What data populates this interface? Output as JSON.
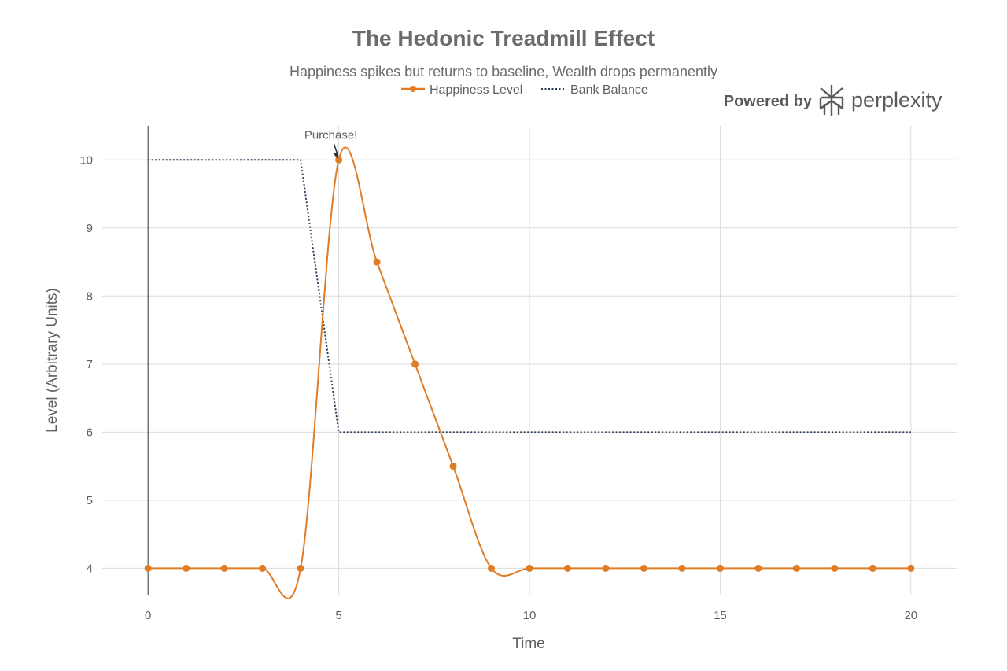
{
  "chart_data": {
    "type": "line",
    "title": "The Hedonic Treadmill Effect",
    "subtitle": "Happiness spikes but returns to baseline, Wealth drops permanently",
    "xlabel": "Time",
    "ylabel": "Level (Arbitrary Units)",
    "xlim": [
      -1.2,
      21.2
    ],
    "ylim": [
      3.6,
      10.5
    ],
    "xticks": [
      0,
      5,
      10,
      15,
      20
    ],
    "yticks": [
      4,
      5,
      6,
      7,
      8,
      9,
      10
    ],
    "grid": true,
    "legend": {
      "placement": "top-center"
    },
    "series": [
      {
        "name": "Happiness Level",
        "style": "line+markers, spline",
        "color": "#e07c24",
        "x": [
          0,
          1,
          2,
          3,
          4,
          5,
          6,
          7,
          8,
          9,
          10,
          11,
          12,
          13,
          14,
          15,
          16,
          17,
          18,
          19,
          20
        ],
        "y": [
          4,
          4,
          4,
          4,
          4,
          10,
          8.5,
          7,
          5.5,
          4,
          4,
          4,
          4,
          4,
          4,
          4,
          4,
          4,
          4,
          4,
          4
        ]
      },
      {
        "name": "Bank Balance",
        "style": "dotted line",
        "color": "#2d3e5a",
        "x": [
          0,
          4,
          5,
          20
        ],
        "y": [
          10,
          10,
          6,
          6
        ]
      }
    ],
    "annotations": [
      {
        "text": "Purchase!",
        "x": 5,
        "y": 10
      }
    ]
  },
  "branding": {
    "prefix": "Powered by",
    "name": "perplexity",
    "icon": "perplexity-logo-icon"
  }
}
